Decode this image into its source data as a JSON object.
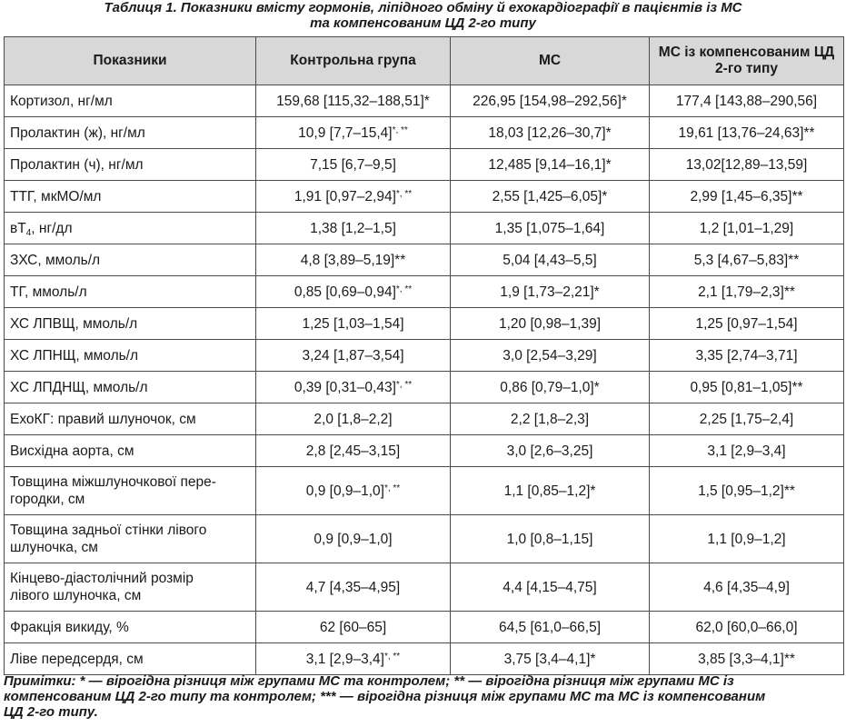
{
  "caption": {
    "line1": "Таблиця 1. Показники вмісту гормонів, ліпідного обміну й ехокардіографії в пацієнтів із МС",
    "line2": "та компенсованим ЦД 2-го типу"
  },
  "table": {
    "headers": [
      "Показники",
      "Контрольна група",
      "МС",
      "МС із компенсованим ЦД 2-го типу"
    ],
    "rows": [
      {
        "label": "Кортизол, нг/мл",
        "control": "159,68 [115,32–188,51]*",
        "ms": "226,95 [154,98–292,56]*",
        "ms_dm": "177,4 [143,88–290,56]"
      },
      {
        "label": "Пролактин (ж), нг/мл",
        "control": "10,9 [7,7–15,4]",
        "control_sup": "*, **",
        "ms": "18,03 [12,26–30,7]*",
        "ms_dm": "19,61 [13,76–24,63]**"
      },
      {
        "label": "Пролактин (ч), нг/мл",
        "control": "7,15 [6,7–9,5]",
        "ms": "12,485 [9,14–16,1]*",
        "ms_dm": "13,02[12,89–13,59]"
      },
      {
        "label": "ТТГ, мкМО/мл",
        "control": "1,91 [0,97–2,94]",
        "control_sup": "*, **",
        "ms": "2,55 [1,425–6,05]*",
        "ms_dm": "2,99 [1,45–6,35]**"
      },
      {
        "label": "вТ",
        "label_sub": "4",
        "label_tail": ", нг/дл",
        "control": "1,38 [1,2–1,5]",
        "ms": "1,35 [1,075–1,64]",
        "ms_dm": "1,2 [1,01–1,29]"
      },
      {
        "label": "ЗХС, ммоль/л",
        "control": "4,8 [3,89–5,19]**",
        "ms": "5,04 [4,43–5,5]",
        "ms_dm": "5,3 [4,67–5,83]**"
      },
      {
        "label": "ТГ, ммоль/л",
        "control": "0,85 [0,69–0,94]",
        "control_sup": "*, **",
        "ms": "1,9 [1,73–2,21]*",
        "ms_dm": "2,1 [1,79–2,3]**"
      },
      {
        "label": "ХС ЛПВЩ, ммоль/л",
        "control": "1,25 [1,03–1,54]",
        "ms": "1,20 [0,98–1,39]",
        "ms_dm": "1,25 [0,97–1,54]"
      },
      {
        "label": "ХС ЛПНЩ, ммоль/л",
        "control": "3,24 [1,87–3,54]",
        "ms": "3,0 [2,54–3,29]",
        "ms_dm": "3,35 [2,74–3,71]"
      },
      {
        "label": "ХС ЛПДНЩ, ммоль/л",
        "control": "0,39 [0,31–0,43]",
        "control_sup": "*, **",
        "ms": "0,86 [0,79–1,0]*",
        "ms_dm": "0,95 [0,81–1,05]**"
      },
      {
        "label": "ЕхоКГ: правий шлуночок, см",
        "control": "2,0 [1,8–2,2]",
        "ms": "2,2 [1,8–2,3]",
        "ms_dm": "2,25 [1,75–2,4]"
      },
      {
        "label": "Висхідна аорта, см",
        "control": "2,8 [2,45–3,15]",
        "ms": "3,0 [2,6–3,25]",
        "ms_dm": "3,1 [2,9–3,4]"
      },
      {
        "label": "Товщина міжшлуночкової перегородки, см",
        "label_l1": "Товщина міжшлуночкової пере-",
        "label_l2": "городки, см",
        "control": "0,9 [0,9–1,0]",
        "control_sup": "*, **",
        "ms": "1,1 [0,85–1,2]*",
        "ms_dm": "1,5 [0,95–1,2]**",
        "tall": true
      },
      {
        "label": "Товщина задньої стінки лівого шлуночка, см",
        "label_l1": "Товщина задньої стінки лівого",
        "label_l2": "шлуночка, см",
        "control": "0,9 [0,9–1,0]",
        "ms": "1,0 [0,8–1,15]",
        "ms_dm": "1,1 [0,9–1,2]",
        "tall": true
      },
      {
        "label": "Кінцево-діастолічний розмір лівого шлуночка, см",
        "label_l1": "Кінцево-діастолічний розмір",
        "label_l2": "лівого шлуночка, см",
        "control": "4,7 [4,35–4,95]",
        "ms": "4,4 [4,15–4,75]",
        "ms_dm": "4,6 [4,35–4,9]",
        "tall": true
      },
      {
        "label": "Фракція викиду, %",
        "control": "62 [60–65]",
        "ms": "64,5 [61,0–66,5]",
        "ms_dm": "62,0 [60,0–66,0]"
      },
      {
        "label": "Ліве передсердя, см",
        "control": "3,1 [2,9–3,4]",
        "control_sup": "*, **",
        "ms": "3,75 [3,4–4,1]*",
        "ms_dm": "3,85 [3,3–4,1]**"
      }
    ]
  },
  "note": {
    "line1": "Примітки: * — вірогідна різниця між групами МС та контролем; ** — вірогідна різниця між групами МС із",
    "line2": "компенсованим ЦД 2-го типу та контролем; *** — вірогідна різниця між групами МС та МС із компенсованим",
    "line3": "ЦД 2-го типу."
  }
}
